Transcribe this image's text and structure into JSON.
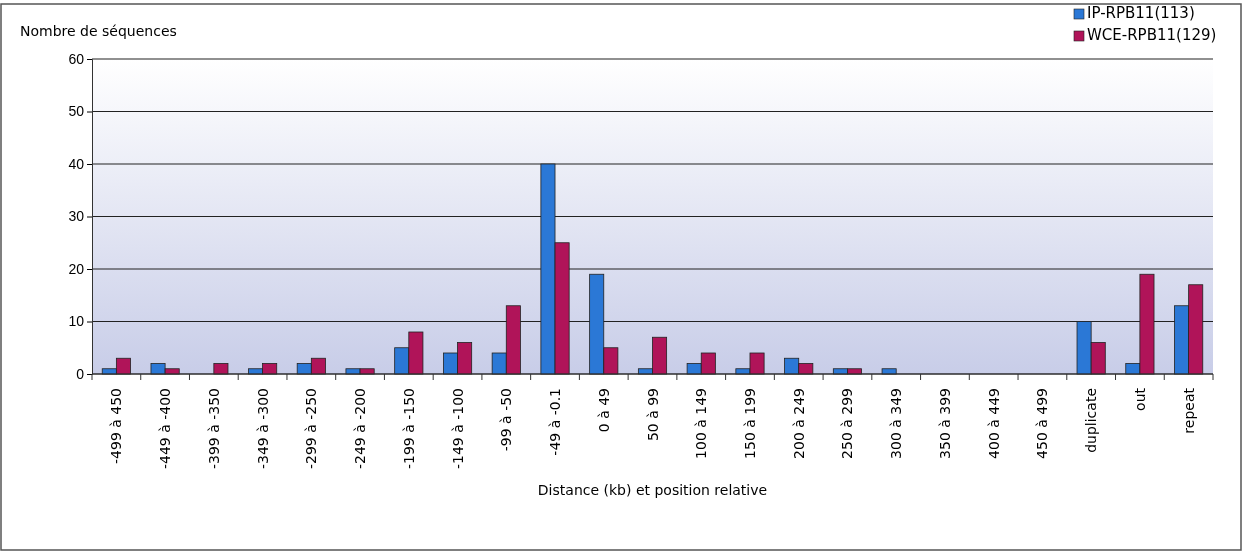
{
  "chart_data": {
    "type": "bar",
    "ylabel": "Nombre de séquences",
    "xlabel": "Distance (kb) et position relative",
    "categories": [
      "-499 à 450",
      "-449 à -400",
      "-399 à -350",
      "-349 à -300",
      "-299 à -250",
      "-249 à -200",
      "-199 à -150",
      "-149 à -100",
      "-99 à -50",
      "-49 à -0.1",
      "0 à 49",
      "50 à 99",
      "100 à 149",
      "150 à 199",
      "200 à 249",
      "250 à 299",
      "300 à 349",
      "350 à 399",
      "400 à 449",
      "450 à 499",
      "duplicate",
      "out",
      "repeat"
    ],
    "series": [
      {
        "name": "IP-RPB11(113)",
        "color": "#2b78d6",
        "values": [
          1,
          2,
          0,
          1,
          2,
          1,
          5,
          4,
          4,
          40,
          19,
          1,
          2,
          1,
          3,
          1,
          1,
          0,
          0,
          0,
          10,
          2,
          13
        ]
      },
      {
        "name": "WCE-RPB11(129)",
        "color": "#b01459",
        "values": [
          3,
          1,
          2,
          2,
          3,
          1,
          8,
          6,
          13,
          25,
          5,
          7,
          4,
          4,
          2,
          1,
          0,
          0,
          0,
          0,
          6,
          19,
          17
        ]
      }
    ],
    "ylim": [
      0,
      60
    ],
    "yticks": [
      0,
      10,
      20,
      30,
      40,
      50,
      60
    ],
    "grid": "y",
    "legend": "top right"
  }
}
